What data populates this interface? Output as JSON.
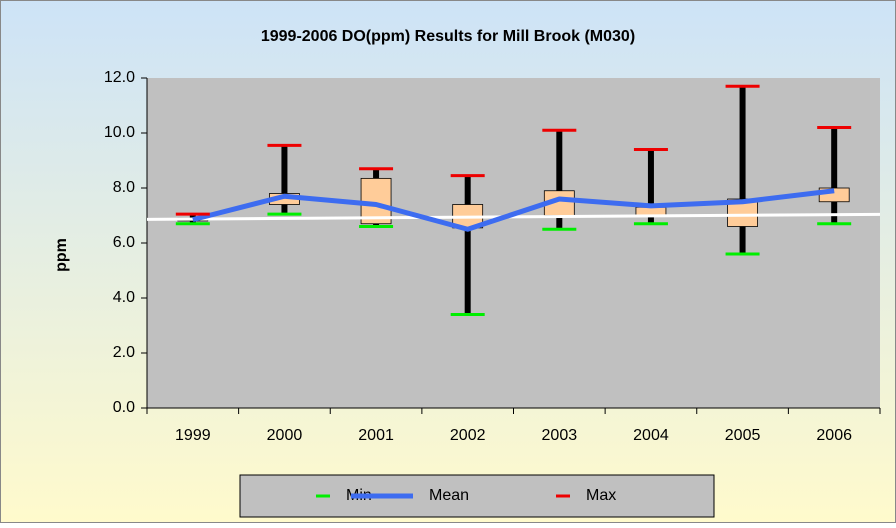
{
  "chart_data": {
    "type": "box",
    "title": "1999-2006 DO(ppm) Results for Mill Brook (M030)",
    "y_label": "ppm",
    "categories": [
      "1999",
      "2000",
      "2001",
      "2002",
      "2003",
      "2004",
      "2005",
      "2006"
    ],
    "series": [
      {
        "name": "Min",
        "color": "#00ee00",
        "values": [
          6.7,
          7.05,
          6.6,
          3.4,
          6.5,
          6.7,
          5.6,
          6.7
        ]
      },
      {
        "name": "Mean",
        "color": "#3d6cf0",
        "values": [
          6.85,
          7.7,
          7.4,
          6.5,
          7.6,
          7.35,
          7.5,
          7.9
        ]
      },
      {
        "name": "Max",
        "color": "#ee0000",
        "values": [
          7.05,
          9.55,
          8.7,
          8.45,
          10.1,
          9.4,
          11.7,
          10.2
        ]
      }
    ],
    "boxes": {
      "color": "#ffcc99",
      "q1": [
        6.8,
        7.4,
        6.7,
        6.55,
        7.0,
        7.0,
        6.6,
        7.5
      ],
      "q3": [
        6.9,
        7.8,
        8.35,
        7.4,
        7.9,
        7.3,
        7.6,
        8.0
      ]
    },
    "trend": {
      "color": "#ffffff",
      "start": 6.87,
      "end": 7.03
    },
    "ylim": [
      0,
      12
    ],
    "yticks": [
      {
        "value": 0,
        "label": "0.0"
      },
      {
        "value": 2,
        "label": "2.0"
      },
      {
        "value": 4,
        "label": "4.0"
      },
      {
        "value": 6,
        "label": "6.0"
      },
      {
        "value": 8,
        "label": "8.0"
      },
      {
        "value": 10,
        "label": "10.0"
      },
      {
        "value": 12,
        "label": "12.0"
      }
    ],
    "legend": "bottom"
  }
}
